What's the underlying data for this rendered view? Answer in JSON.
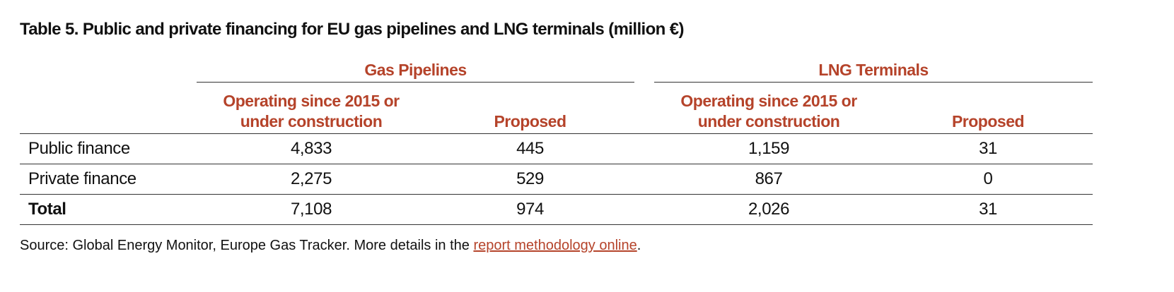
{
  "title": "Table 5. Public and private financing for EU gas pipelines and LNG terminals (million €)",
  "table": {
    "groups": [
      "Gas Pipelines",
      "LNG Terminals"
    ],
    "columns": [
      "Operating since 2015 or under construction",
      "Proposed",
      "Operating since 2015 or under construction",
      "Proposed"
    ],
    "rows": [
      [
        "Public finance",
        "4,833",
        "445",
        "1,159",
        "31"
      ],
      [
        "Private finance",
        "2,275",
        "529",
        "867",
        "0"
      ],
      [
        "Total",
        "7,108",
        "974",
        "2,026",
        "31"
      ]
    ]
  },
  "source": {
    "text": "Source: Global Energy Monitor, Europe Gas Tracker. More details in the ",
    "link": "report methodology online",
    "end": "."
  }
}
